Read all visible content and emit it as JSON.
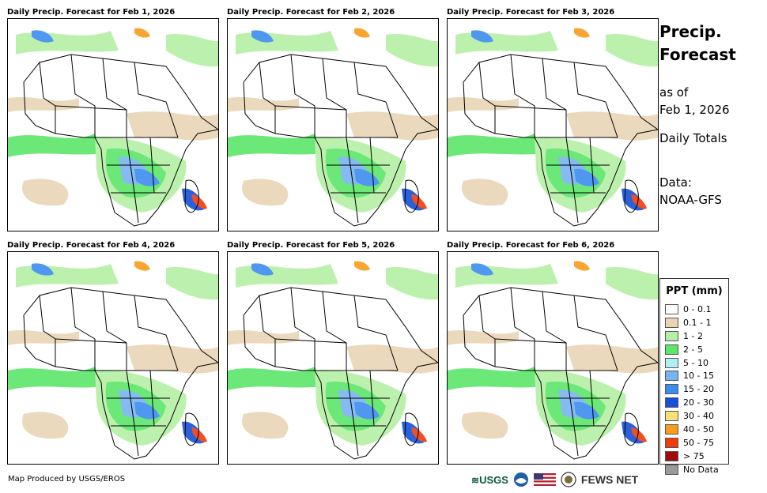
{
  "panels": [
    {
      "title": "Daily Precip. Forecast for Feb 1, 2026"
    },
    {
      "title": "Daily Precip. Forecast for Feb 2, 2026"
    },
    {
      "title": "Daily Precip. Forecast for Feb 3, 2026"
    },
    {
      "title": "Daily Precip. Forecast for Feb 4, 2026"
    },
    {
      "title": "Daily Precip. Forecast for Feb 5, 2026"
    },
    {
      "title": "Daily Precip. Forecast for Feb 6, 2026"
    }
  ],
  "side": {
    "title_line1": "Precip.",
    "title_line2": "Forecast",
    "asof_line1": "as of",
    "asof_line2": "Feb 1, 2026",
    "totals": "Daily Totals",
    "data_line1": "Data:",
    "data_line2": "NOAA-GFS"
  },
  "legend": {
    "title": "PPT (mm)",
    "items": [
      {
        "label": "0 - 0.1",
        "color": "#ffffff"
      },
      {
        "label": "0.1 - 1",
        "color": "#e8d5b5"
      },
      {
        "label": "1 - 2",
        "color": "#b4f0a4"
      },
      {
        "label": "2 - 5",
        "color": "#5ce66a"
      },
      {
        "label": "5 - 10",
        "color": "#b0f0f4"
      },
      {
        "label": "10 - 15",
        "color": "#78b4f0"
      },
      {
        "label": "15 - 20",
        "color": "#3c8cf0"
      },
      {
        "label": "20 - 30",
        "color": "#1450d8"
      },
      {
        "label": "30 - 40",
        "color": "#f8e07c"
      },
      {
        "label": "40 - 50",
        "color": "#f89c1c"
      },
      {
        "label": "50 - 75",
        "color": "#f03c0c"
      },
      {
        "label": "> 75",
        "color": "#a00c0c"
      },
      {
        "label": "No Data",
        "color": "#9a9a9a"
      }
    ]
  },
  "footer": {
    "credit": "Map Produced by USGS/EROS",
    "usgs": "USGS",
    "fews": "FEWS NET"
  }
}
